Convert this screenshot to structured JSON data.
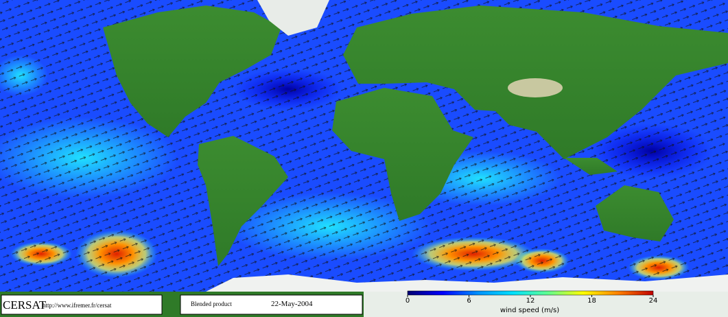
{
  "credit": {
    "name": "CERSAT",
    "url": "http://www.ifremer.fr/cersat"
  },
  "product": {
    "label": "Blended product",
    "date": "22-May-2004"
  },
  "colorbar": {
    "label": "wind speed (m/s)",
    "lim": [
      0,
      24
    ],
    "ticks": [
      0,
      6,
      12,
      18,
      24
    ],
    "colors": [
      "#000070",
      "#0000ff",
      "#0090ff",
      "#00e0ff",
      "#60ff90",
      "#ffff00",
      "#ff8000",
      "#c00000"
    ]
  }
}
